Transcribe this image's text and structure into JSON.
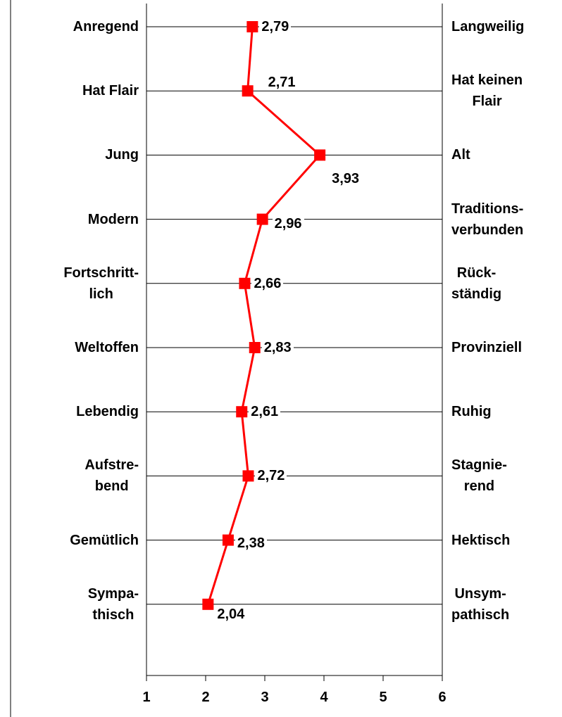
{
  "chart_data": {
    "type": "line",
    "orientation": "horizontal",
    "categories": [
      "Anregend",
      "Hat Flair",
      "Jung",
      "Modern",
      "Fortschritt-\nlich",
      "Weltoffen",
      "Lebendig",
      "Aufstre-\nbend",
      "Gemütlich",
      "Sympa-\nthisch"
    ],
    "right_categories": [
      "Langweilig",
      "Hat keinen\nFlair",
      "Alt",
      "Traditions-\nverbunden",
      "Rück-\nständig",
      "Provinziell",
      "Ruhig",
      "Stagnie-\nrend",
      "Hektisch",
      "Unsym-\npathisch"
    ],
    "values": [
      2.79,
      2.71,
      3.93,
      2.96,
      2.66,
      2.83,
      2.61,
      2.72,
      2.38,
      2.04
    ],
    "value_labels": [
      "2,79",
      "2,71",
      "3,93",
      "2,96",
      "2,66",
      "2,83",
      "2,61",
      "2,72",
      "2,38",
      "2,04"
    ],
    "color": "#ff0000",
    "xlim": [
      1,
      6
    ],
    "xticks": [
      1,
      2,
      3,
      4,
      5,
      6
    ]
  }
}
